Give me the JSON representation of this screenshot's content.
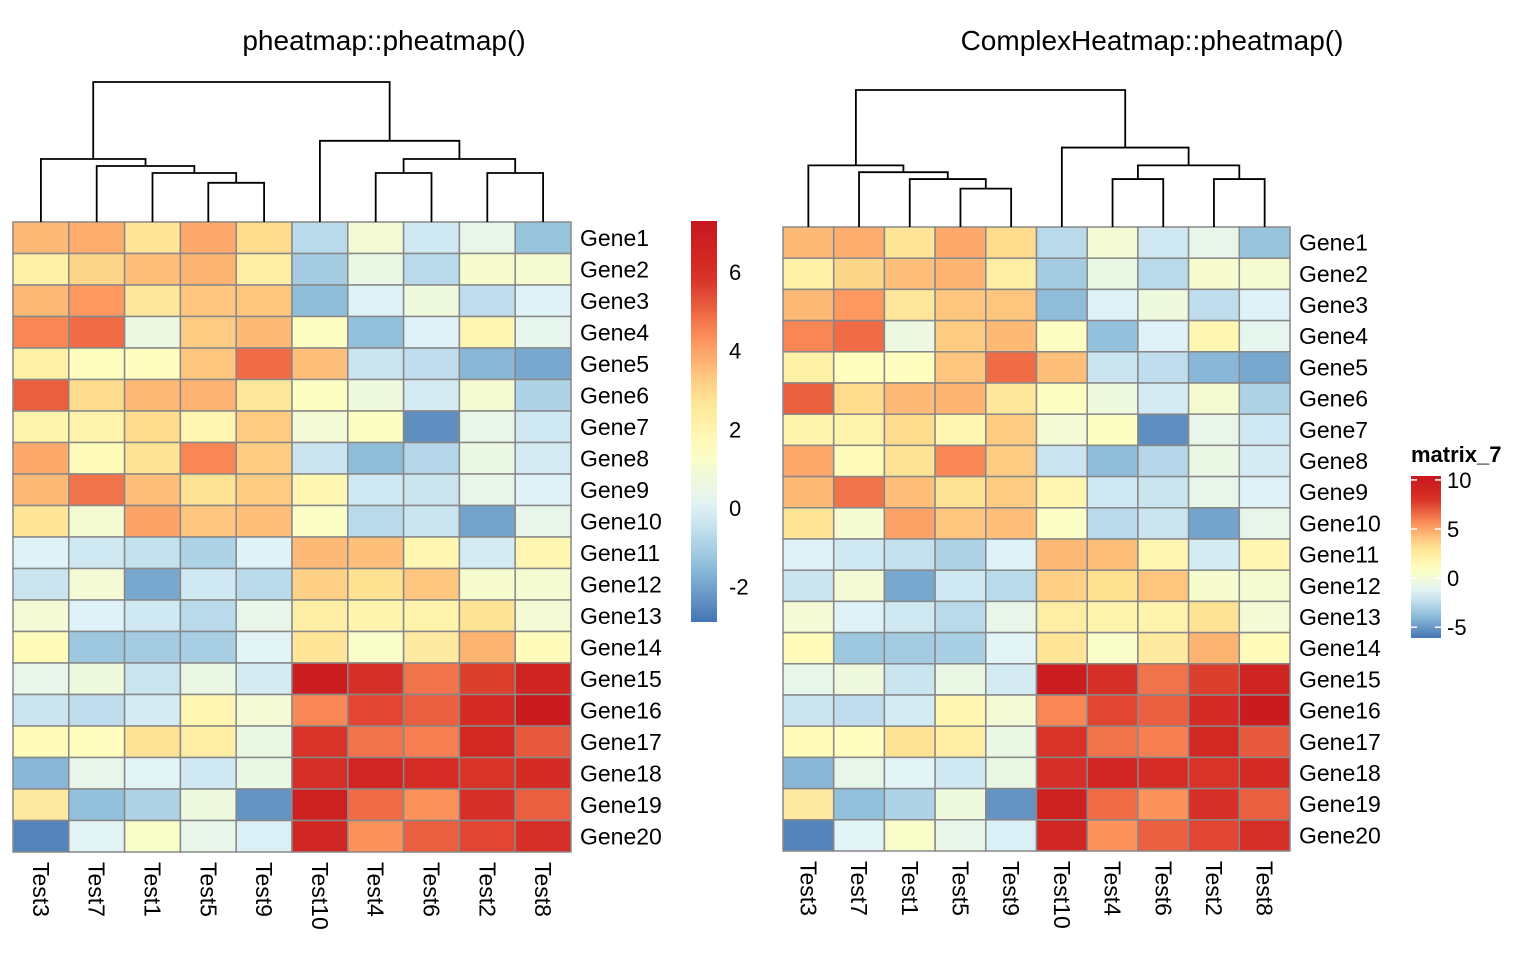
{
  "chart_data": [
    {
      "type": "heatmap",
      "title": "pheatmap::pheatmap()",
      "rows": [
        "Gene1",
        "Gene2",
        "Gene3",
        "Gene4",
        "Gene5",
        "Gene6",
        "Gene7",
        "Gene8",
        "Gene9",
        "Gene10",
        "Gene11",
        "Gene12",
        "Gene13",
        "Gene14",
        "Gene15",
        "Gene16",
        "Gene17",
        "Gene18",
        "Gene19",
        "Gene20"
      ],
      "columns": [
        "Test3",
        "Test7",
        "Test1",
        "Test5",
        "Test9",
        "Test10",
        "Test4",
        "Test6",
        "Test2",
        "Test8"
      ],
      "values": [
        [
          3.6,
          3.8,
          2.7,
          3.9,
          3.0,
          -0.7,
          0.9,
          -0.3,
          0.4,
          -1.3
        ],
        [
          2.2,
          3.1,
          3.5,
          3.7,
          2.3,
          -1.1,
          0.5,
          -0.7,
          1.1,
          1.0
        ],
        [
          3.6,
          4.2,
          2.6,
          3.4,
          3.4,
          -1.5,
          0.0,
          0.7,
          -0.6,
          0.0
        ],
        [
          4.5,
          4.9,
          0.6,
          3.3,
          3.6,
          1.4,
          -1.4,
          0.0,
          1.9,
          0.3
        ],
        [
          2.2,
          1.5,
          1.5,
          3.4,
          4.9,
          3.5,
          -0.4,
          -0.6,
          -1.6,
          -1.9
        ],
        [
          5.1,
          3.0,
          3.6,
          3.7,
          2.6,
          1.4,
          0.7,
          -0.2,
          1.0,
          -0.9
        ],
        [
          2.0,
          2.1,
          3.0,
          1.9,
          3.3,
          0.9,
          1.4,
          -2.4,
          0.4,
          -0.3
        ],
        [
          3.9,
          1.6,
          2.8,
          4.5,
          3.3,
          -0.4,
          -1.5,
          -0.8,
          0.5,
          -0.2
        ],
        [
          3.6,
          4.8,
          3.5,
          2.8,
          3.3,
          1.9,
          -0.3,
          -0.4,
          0.4,
          0.0
        ],
        [
          2.7,
          1.0,
          4.0,
          3.4,
          3.5,
          1.3,
          -0.7,
          -0.4,
          -2.0,
          0.4
        ],
        [
          0.0,
          -0.3,
          -0.5,
          -0.9,
          0.0,
          3.6,
          3.5,
          1.9,
          -0.2,
          1.9
        ],
        [
          -0.4,
          0.9,
          -1.9,
          -0.3,
          -0.7,
          3.2,
          2.9,
          3.4,
          1.1,
          1.0
        ],
        [
          0.9,
          0.0,
          -0.3,
          -0.7,
          0.4,
          2.3,
          2.0,
          2.1,
          2.8,
          0.9
        ],
        [
          1.6,
          -1.2,
          -1.1,
          -1.0,
          0.1,
          2.7,
          1.2,
          2.4,
          3.7,
          1.6
        ],
        [
          0.4,
          0.7,
          -0.4,
          0.5,
          -0.2,
          7.0,
          5.9,
          4.8,
          5.6,
          6.6
        ],
        [
          -0.4,
          -0.6,
          -0.2,
          1.9,
          0.9,
          4.5,
          5.5,
          5.1,
          6.1,
          7.1
        ],
        [
          1.6,
          1.5,
          2.8,
          2.3,
          0.5,
          5.8,
          4.8,
          4.6,
          6.3,
          5.2
        ],
        [
          -1.6,
          0.4,
          0.1,
          -0.3,
          0.5,
          5.9,
          6.5,
          6.0,
          5.8,
          6.1
        ],
        [
          2.4,
          -1.4,
          -0.9,
          0.7,
          -2.3,
          6.8,
          4.9,
          4.3,
          5.9,
          5.1
        ],
        [
          -2.6,
          0.1,
          1.2,
          0.4,
          -0.1,
          6.4,
          4.3,
          5.1,
          5.5,
          5.9
        ]
      ],
      "color_range": [
        -2.9,
        7.3
      ],
      "legend": {
        "ticks": [
          -2,
          0,
          2,
          4,
          6
        ],
        "placement": "right"
      },
      "dendrogram": "columns"
    },
    {
      "type": "heatmap",
      "title": "ComplexHeatmap::pheatmap()",
      "rows": [
        "Gene1",
        "Gene2",
        "Gene3",
        "Gene4",
        "Gene5",
        "Gene6",
        "Gene7",
        "Gene8",
        "Gene9",
        "Gene10",
        "Gene11",
        "Gene12",
        "Gene13",
        "Gene14",
        "Gene15",
        "Gene16",
        "Gene17",
        "Gene18",
        "Gene19",
        "Gene20"
      ],
      "columns": [
        "Test3",
        "Test7",
        "Test1",
        "Test5",
        "Test9",
        "Test10",
        "Test4",
        "Test6",
        "Test2",
        "Test8"
      ],
      "values": "same matrix as the left panel",
      "legend": {
        "title": "matrix_7",
        "ticks": [
          10,
          5,
          0,
          -5
        ],
        "placement": "right"
      },
      "dendrogram": "columns"
    }
  ],
  "colors": {
    "palette": [
      "#4575b4",
      "#91bfdb",
      "#e0f3f8",
      "#ffffbf",
      "#fee090",
      "#fc8d59",
      "#d73027",
      "#c8181e"
    ],
    "grid": "#888888"
  }
}
